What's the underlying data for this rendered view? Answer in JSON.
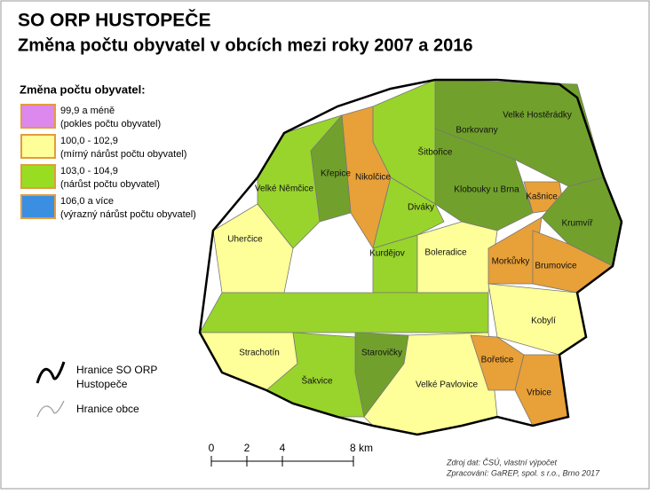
{
  "header": {
    "title": "SO ORP HUSTOPEČE",
    "subtitle": "Změna počtu obyvatel v obcích mezi roky 2007 a 2016"
  },
  "legend": {
    "title": "Změna počtu obyvatel:",
    "items": [
      {
        "color": "#dd88ee",
        "lines": [
          "99,9 a méně",
          "(pokles počtu obyvatel)"
        ]
      },
      {
        "color": "#ffff99",
        "lines": [
          "100,0 - 102,9",
          "(mírný nárůst počtu obyvatel)"
        ]
      },
      {
        "color": "#99dd22",
        "lines": [
          "103,0 - 104,9",
          "(nárůst počtu obyvatel)"
        ]
      },
      {
        "color": "#3b8fe0",
        "lines": [
          "106,0 a více",
          "(výrazný nárůst počtu obyvatel)"
        ]
      }
    ]
  },
  "boundaries": [
    {
      "lines": [
        "Hranice SO ORP",
        "Hustopeče"
      ]
    },
    {
      "lines": [
        "Hranice obce"
      ]
    }
  ],
  "scale": {
    "ticks": [
      0,
      2,
      4,
      {
        "value": 8,
        "label": "8 km"
      }
    ]
  },
  "municipalities": [
    "Velké Hostěrádky",
    "Borkovany",
    "Šitbořice",
    "Křepice",
    "Nikolčice",
    "Kašnice",
    "Klobouky u Brna",
    "Velké Němčice",
    "Diváky",
    "Krumvíř",
    "Uherčice",
    "Kurdějov",
    "Boleradice",
    "Morkůvky",
    "Brumovice",
    "Kobylí",
    "Strachotín",
    "Starovičky",
    "Bořetice",
    "Šakvice",
    "Velké Pavlovice",
    "Vrbice"
  ],
  "source": [
    "Zdroj dat: ČSÚ, vlastní výpočet",
    "Zpracování: GaREP, spol. s r.o., Brno 2017"
  ]
}
